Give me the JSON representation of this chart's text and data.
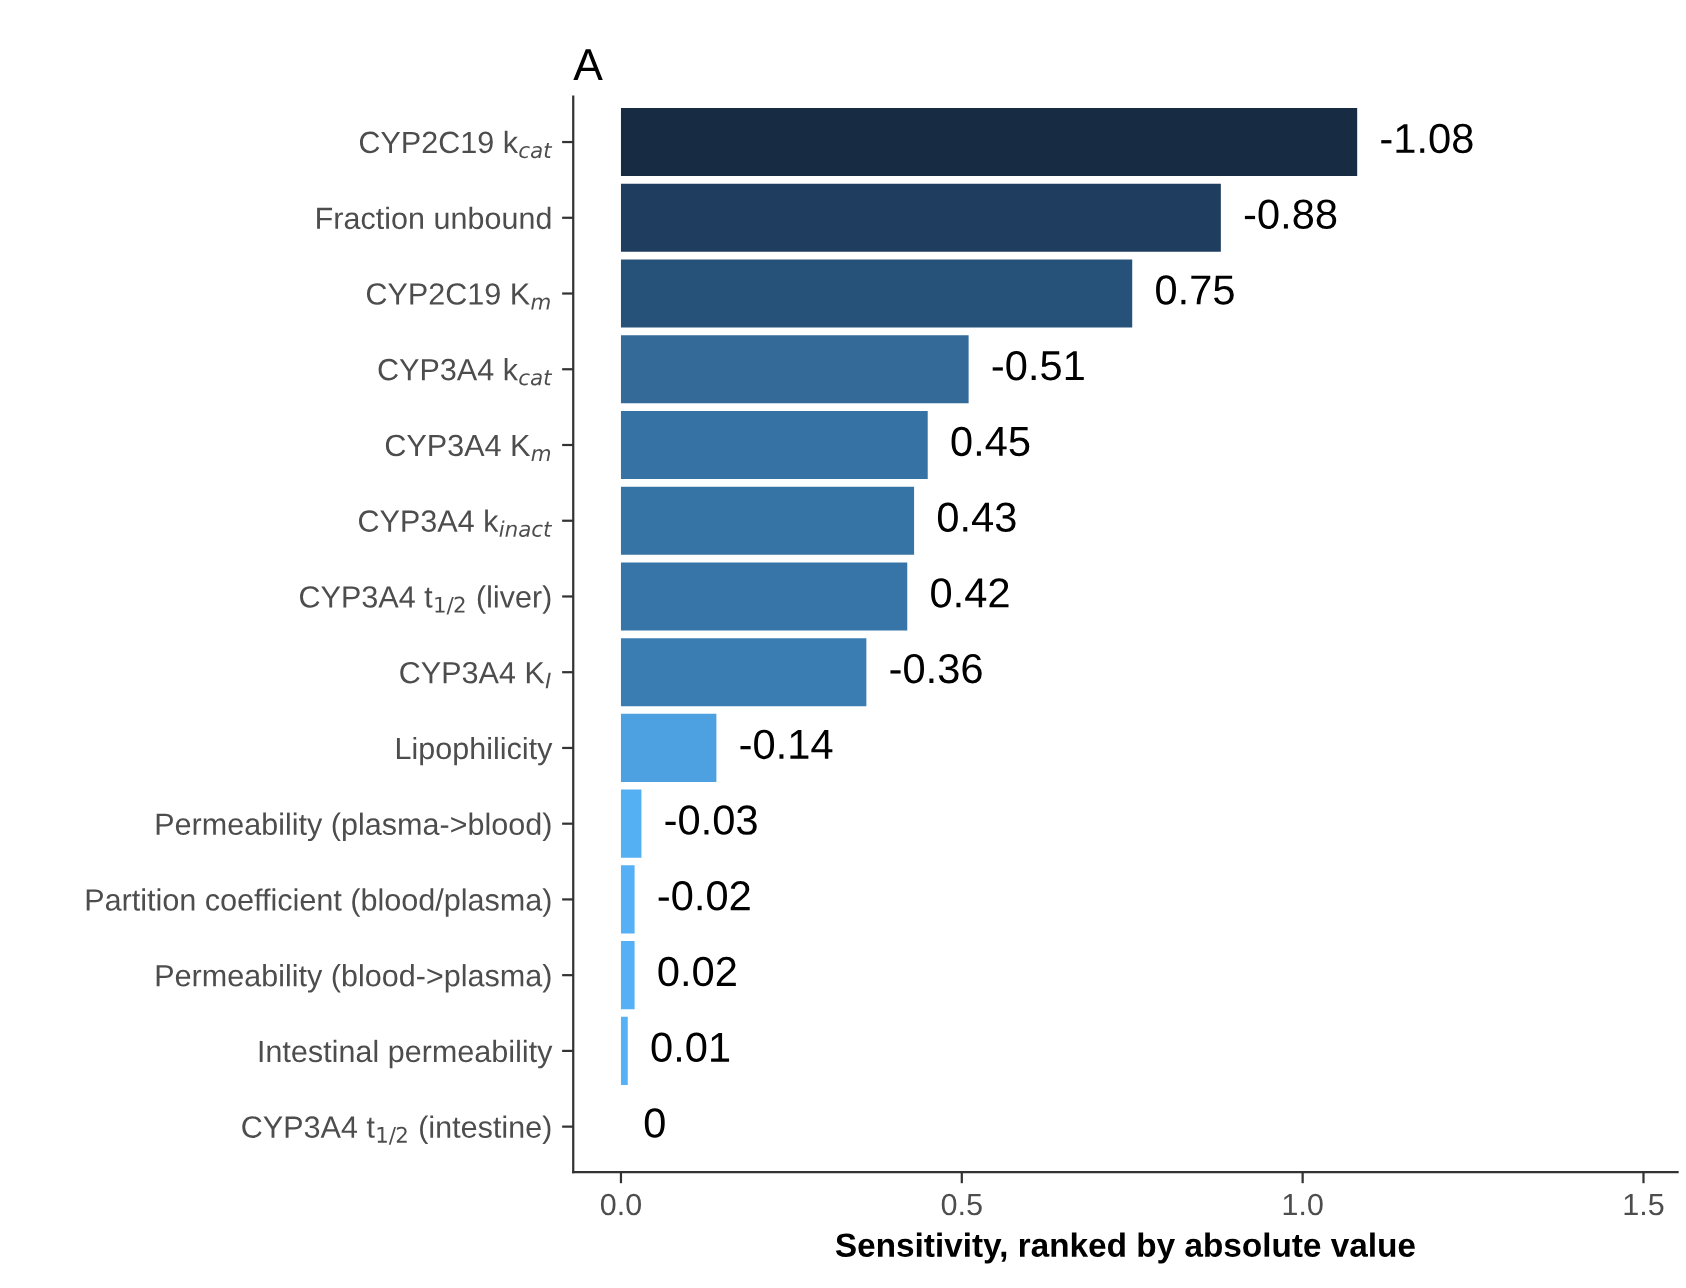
{
  "chart_data": {
    "type": "bar",
    "orientation": "horizontal",
    "title": "A",
    "xlabel": "Sensitivity, ranked by absolute value",
    "categories": [
      "CYP2C19 k$_{cat}$",
      "Fraction unbound",
      "CYP2C19 K$_{m}$",
      "CYP3A4 k$_{cat}$",
      "CYP3A4 K$_{m}$",
      "CYP3A4 k$_{inact}$",
      "CYP3A4 t$_{1/2}$ (liver)",
      "CYP3A4 K$_{I}$",
      "Lipophilicity",
      "Permeability (plasma->blood)",
      "Partition coefficient (blood/plasma)",
      "Permeability (blood->plasma)",
      "Intestinal permeability",
      "CYP3A4 t$_{1/2}$ (intestine)"
    ],
    "values": [
      1.08,
      0.88,
      0.75,
      0.51,
      0.45,
      0.43,
      0.42,
      0.36,
      0.14,
      0.03,
      0.02,
      0.02,
      0.01,
      0
    ],
    "annotations": [
      {
        "text": "-1.08",
        "x": 1.08,
        "y": "CYP2C19 k$_{cat}$"
      },
      {
        "text": "-0.88",
        "x": 0.88,
        "y": "Fraction unbound"
      },
      {
        "text": "0.75",
        "x": 0.75,
        "y": "CYP2C19 K$_{m}$"
      },
      {
        "text": "-0.51",
        "x": 0.51,
        "y": "CYP3A4 k$_{cat}$"
      },
      {
        "text": "0.45",
        "x": 0.45,
        "y": "CYP3A4 K$_{m}$"
      },
      {
        "text": "0.43",
        "x": 0.43,
        "y": "CYP3A4 k$_{inact}$"
      },
      {
        "text": "0.42",
        "x": 0.42,
        "y": "CYP3A4 t$_{1/2}$ (liver)"
      },
      {
        "text": "-0.36",
        "x": 0.36,
        "y": "CYP3A4 K$_{I}$"
      },
      {
        "text": "-0.14",
        "x": 0.14,
        "y": "Lipophilicity"
      },
      {
        "text": "-0.03",
        "x": 0.03,
        "y": "Permeability (plasma->blood)"
      },
      {
        "text": "-0.02",
        "x": 0.02,
        "y": "Partition coefficient (blood/plasma)"
      },
      {
        "text": "0.02",
        "x": 0.02,
        "y": "Permeability (blood->plasma)"
      },
      {
        "text": "0.01",
        "x": 0.01,
        "y": "Intestinal permeability"
      },
      {
        "text": "0",
        "x": 0,
        "y": "CYP3A4 t$_{1/2}$ (intestine)"
      }
    ],
    "colors": [
      "#172b43",
      "#1f3e5f",
      "#26527a",
      "#336a98",
      "#3672a3",
      "#3774a6",
      "#3775a8",
      "#3a7db2",
      "#4ea1e0",
      "#55aff3",
      "#56b0f5",
      "#56b0f5",
      "#56b1f6",
      "#56b1f7"
    ],
    "xlim": [
      -0.07,
      1.55
    ],
    "xticks": [
      {
        "value": 0,
        "label": "0.0"
      },
      0.5,
      {
        "value": 1,
        "label": "1.0"
      },
      1.5
    ],
    "grid": false,
    "legend": false
  }
}
